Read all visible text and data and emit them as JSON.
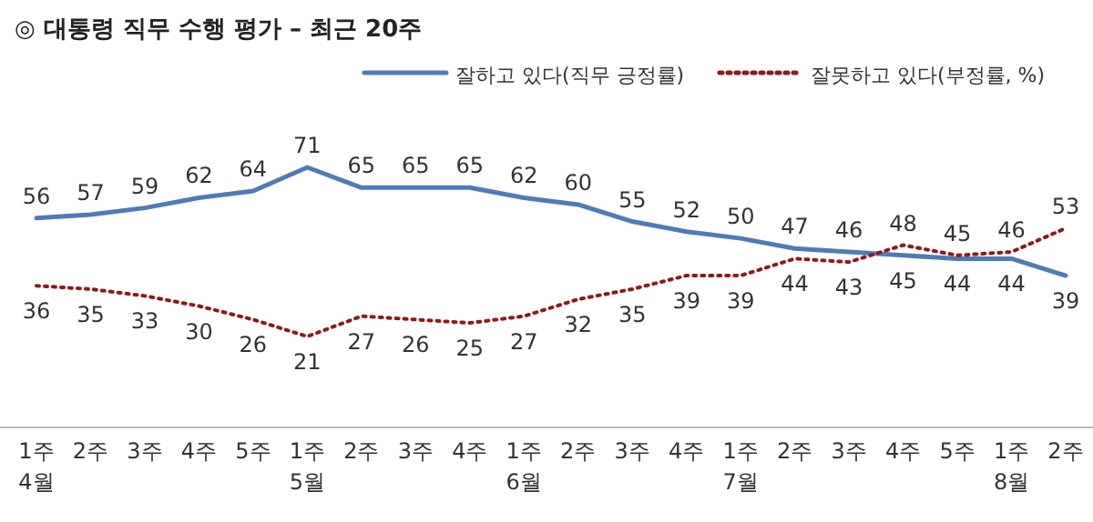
{
  "chart_data": {
    "type": "line",
    "title": "◎  대통령 직무 수행 평가 – 최근 20주",
    "categories": [
      "1주\n4월",
      "2주",
      "3주",
      "4주",
      "5주",
      "1주\n5월",
      "2주",
      "3주",
      "4주",
      "1주\n6월",
      "2주",
      "3주",
      "4주",
      "1주\n7월",
      "2주",
      "3주",
      "4주",
      "5주",
      "1주\n8월",
      "2주"
    ],
    "data_labels": true,
    "legend": "top",
    "tick_labels": "x",
    "series": [
      {
        "name": "잘하고 있다(직무 긍정률)",
        "color": "#4f7bb5",
        "line_style": "solid",
        "values": [
          56,
          57,
          59,
          62,
          64,
          71,
          65,
          65,
          65,
          62,
          60,
          55,
          52,
          50,
          47,
          46,
          45,
          44,
          44,
          39
        ]
      },
      {
        "name": "잘못하고 있다(부정률, %)",
        "color": "#8b1a1a",
        "line_style": "dotted",
        "values": [
          36,
          35,
          33,
          30,
          26,
          21,
          27,
          26,
          25,
          27,
          32,
          35,
          39,
          39,
          44,
          43,
          48,
          45,
          46,
          53
        ]
      }
    ]
  }
}
